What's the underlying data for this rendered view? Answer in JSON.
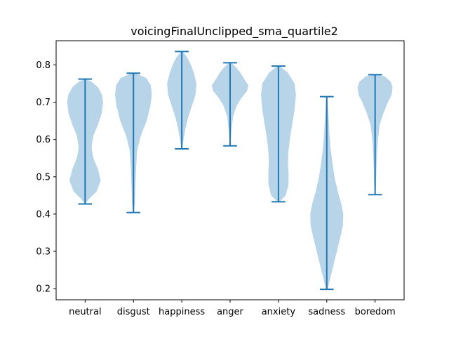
{
  "chart_data": {
    "type": "violin",
    "title": "voicingFinalUnclipped_sma_quartile2",
    "xlabel": "",
    "ylabel": "",
    "ylim": [
      0.17,
      0.865
    ],
    "yticks": [
      0.2,
      0.3,
      0.4,
      0.5,
      0.6,
      0.7,
      0.8
    ],
    "ytick_labels": [
      "0.2",
      "0.3",
      "0.4",
      "0.5",
      "0.6",
      "0.7",
      "0.8"
    ],
    "categories": [
      "neutral",
      "disgust",
      "happiness",
      "anger",
      "anxiety",
      "sadness",
      "boredom"
    ],
    "violins": [
      {
        "category": "neutral",
        "min": 0.427,
        "max": 0.762,
        "density": [
          [
            0.427,
            0.02
          ],
          [
            0.44,
            0.2
          ],
          [
            0.46,
            0.62
          ],
          [
            0.49,
            0.85
          ],
          [
            0.52,
            0.7
          ],
          [
            0.55,
            0.45
          ],
          [
            0.58,
            0.35
          ],
          [
            0.61,
            0.45
          ],
          [
            0.64,
            0.7
          ],
          [
            0.67,
            0.9
          ],
          [
            0.7,
            0.98
          ],
          [
            0.72,
            0.92
          ],
          [
            0.74,
            0.7
          ],
          [
            0.755,
            0.35
          ],
          [
            0.762,
            0.05
          ]
        ]
      },
      {
        "category": "disgust",
        "min": 0.404,
        "max": 0.778,
        "density": [
          [
            0.404,
            0.02
          ],
          [
            0.43,
            0.08
          ],
          [
            0.47,
            0.1
          ],
          [
            0.52,
            0.14
          ],
          [
            0.57,
            0.2
          ],
          [
            0.61,
            0.4
          ],
          [
            0.65,
            0.72
          ],
          [
            0.69,
            0.92
          ],
          [
            0.72,
            1.0
          ],
          [
            0.745,
            0.95
          ],
          [
            0.765,
            0.7
          ],
          [
            0.778,
            0.1
          ]
        ]
      },
      {
        "category": "happiness",
        "min": 0.575,
        "max": 0.836,
        "density": [
          [
            0.575,
            0.02
          ],
          [
            0.6,
            0.1
          ],
          [
            0.63,
            0.2
          ],
          [
            0.66,
            0.35
          ],
          [
            0.69,
            0.55
          ],
          [
            0.72,
            0.75
          ],
          [
            0.75,
            0.8
          ],
          [
            0.78,
            0.65
          ],
          [
            0.8,
            0.5
          ],
          [
            0.82,
            0.3
          ],
          [
            0.836,
            0.05
          ]
        ]
      },
      {
        "category": "anger",
        "min": 0.583,
        "max": 0.806,
        "density": [
          [
            0.583,
            0.02
          ],
          [
            0.62,
            0.07
          ],
          [
            0.66,
            0.15
          ],
          [
            0.69,
            0.35
          ],
          [
            0.71,
            0.6
          ],
          [
            0.73,
            0.92
          ],
          [
            0.745,
            1.0
          ],
          [
            0.76,
            0.8
          ],
          [
            0.78,
            0.55
          ],
          [
            0.795,
            0.3
          ],
          [
            0.806,
            0.05
          ]
        ]
      },
      {
        "category": "anxiety",
        "min": 0.433,
        "max": 0.797,
        "density": [
          [
            0.433,
            0.05
          ],
          [
            0.45,
            0.4
          ],
          [
            0.48,
            0.55
          ],
          [
            0.51,
            0.55
          ],
          [
            0.54,
            0.52
          ],
          [
            0.57,
            0.55
          ],
          [
            0.6,
            0.62
          ],
          [
            0.64,
            0.75
          ],
          [
            0.68,
            0.88
          ],
          [
            0.72,
            0.95
          ],
          [
            0.75,
            0.88
          ],
          [
            0.78,
            0.5
          ],
          [
            0.797,
            0.05
          ]
        ]
      },
      {
        "category": "sadness",
        "min": 0.198,
        "max": 0.715,
        "density": [
          [
            0.198,
            0.05
          ],
          [
            0.22,
            0.15
          ],
          [
            0.25,
            0.3
          ],
          [
            0.28,
            0.45
          ],
          [
            0.31,
            0.6
          ],
          [
            0.34,
            0.75
          ],
          [
            0.37,
            0.88
          ],
          [
            0.4,
            0.9
          ],
          [
            0.43,
            0.78
          ],
          [
            0.46,
            0.6
          ],
          [
            0.5,
            0.42
          ],
          [
            0.54,
            0.3
          ],
          [
            0.58,
            0.2
          ],
          [
            0.62,
            0.14
          ],
          [
            0.66,
            0.1
          ],
          [
            0.7,
            0.05
          ],
          [
            0.715,
            0.02
          ]
        ]
      },
      {
        "category": "boredom",
        "min": 0.452,
        "max": 0.774,
        "density": [
          [
            0.452,
            0.02
          ],
          [
            0.48,
            0.05
          ],
          [
            0.52,
            0.07
          ],
          [
            0.56,
            0.1
          ],
          [
            0.6,
            0.15
          ],
          [
            0.64,
            0.25
          ],
          [
            0.67,
            0.45
          ],
          [
            0.7,
            0.7
          ],
          [
            0.72,
            0.9
          ],
          [
            0.74,
            0.95
          ],
          [
            0.755,
            0.85
          ],
          [
            0.77,
            0.5
          ],
          [
            0.774,
            0.1
          ]
        ]
      }
    ],
    "colors": {
      "violin_fill": "#b8d4e8",
      "line": "#1f77b4",
      "axes": "#000000"
    },
    "grid": false,
    "legend": "none"
  }
}
